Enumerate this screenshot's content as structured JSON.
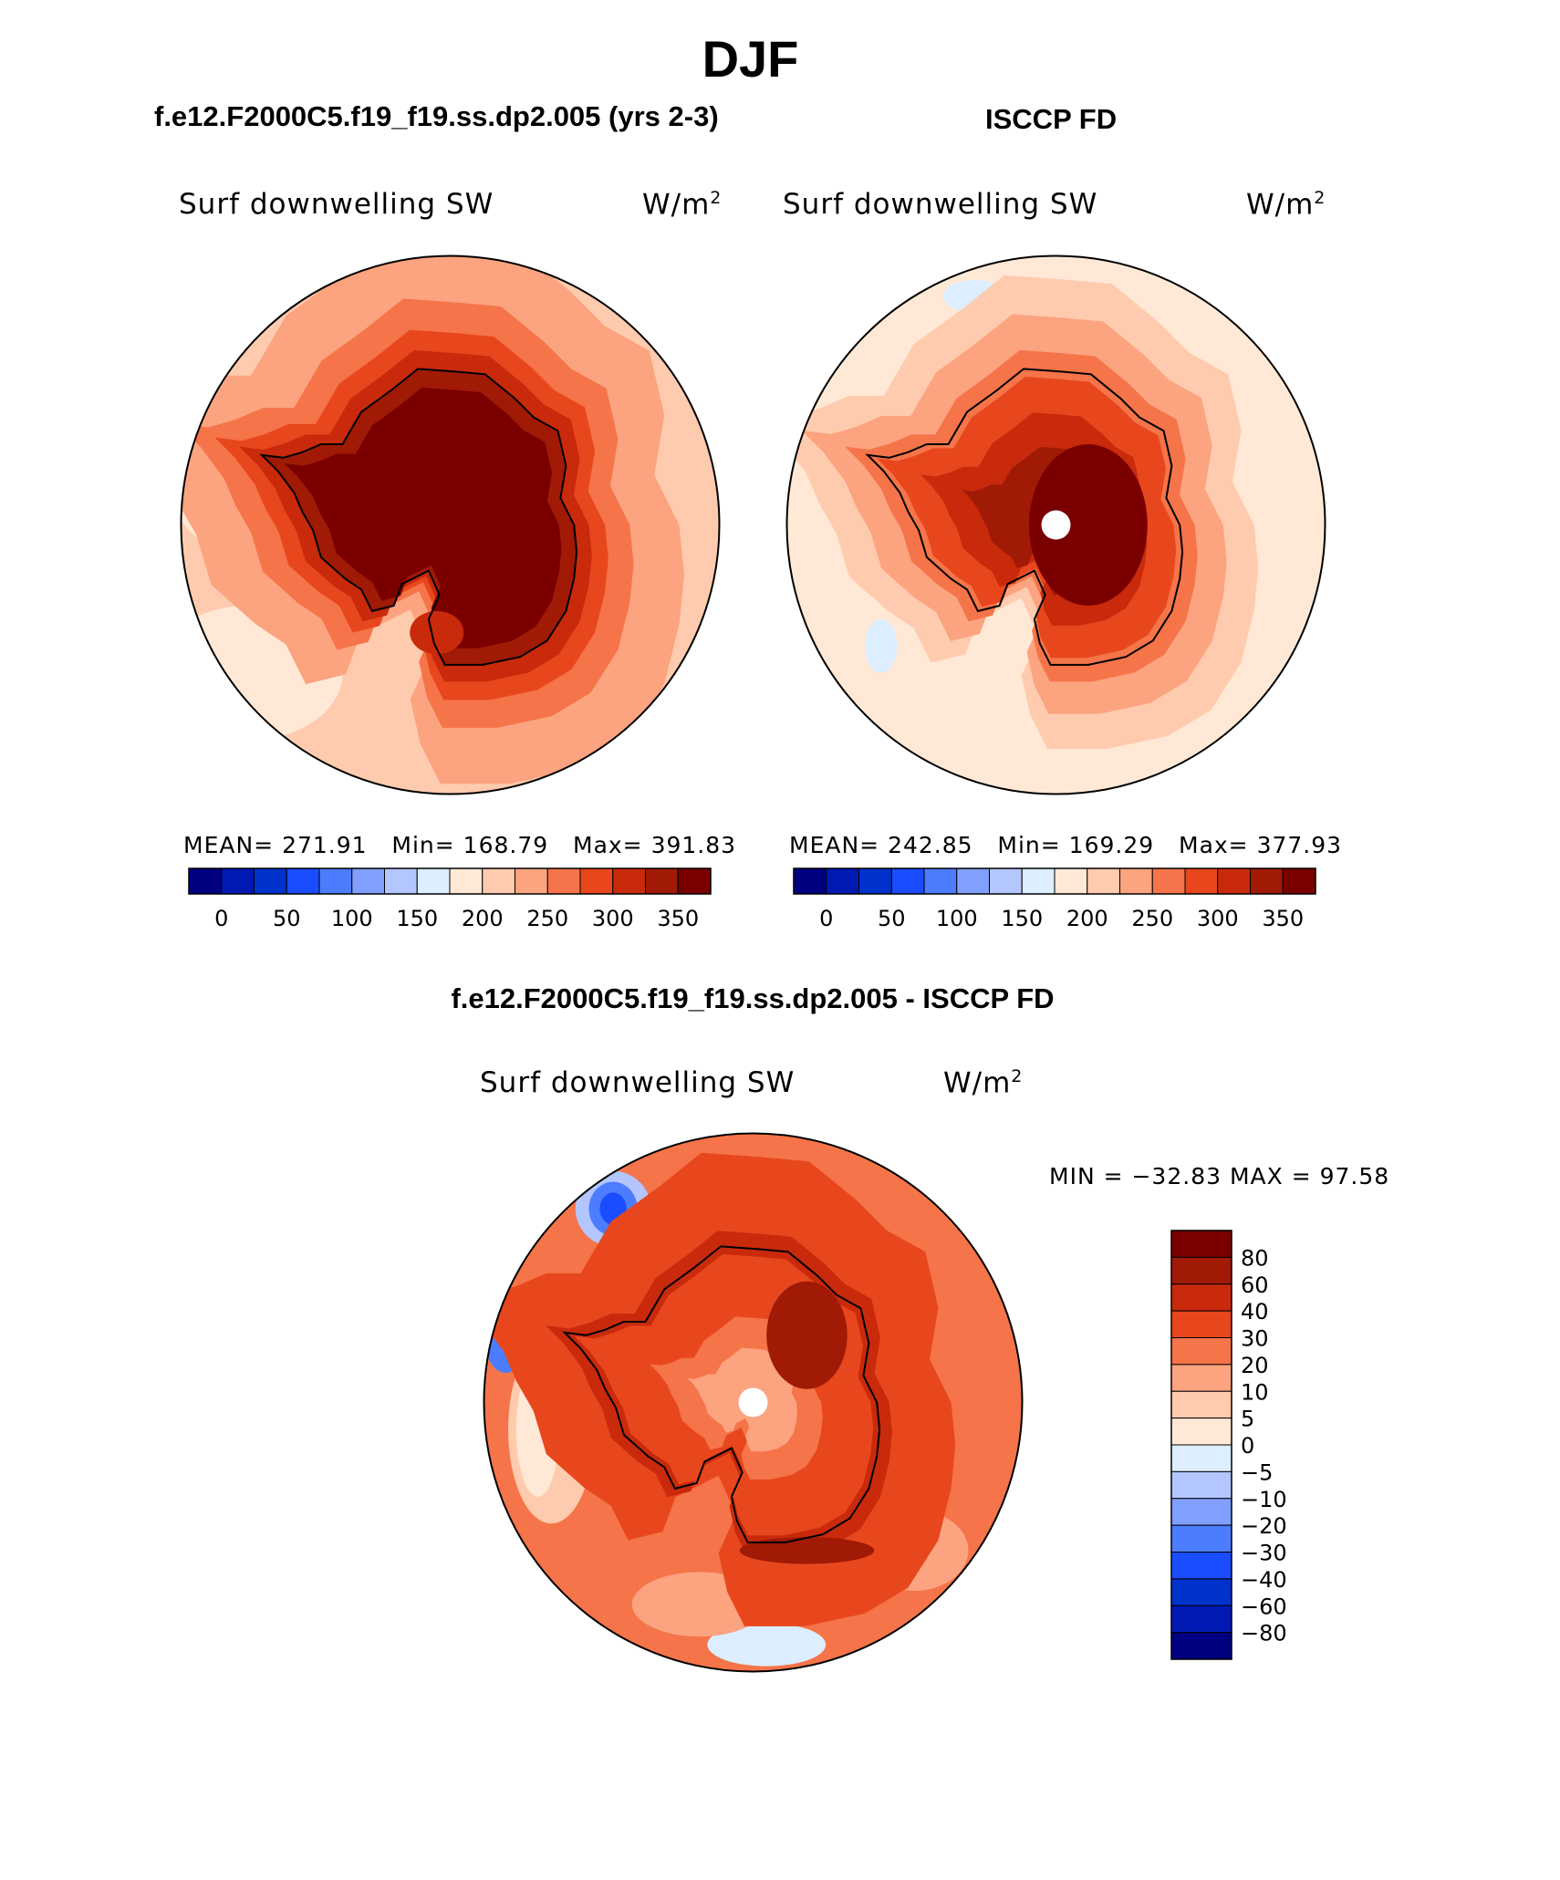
{
  "title": "DJF",
  "panels": {
    "model": {
      "title": "f.e12.F2000C5.f19_f19.ss.dp2.005 (yrs 2-3)"
    },
    "obs": {
      "title": "ISCCP FD"
    },
    "diff": {
      "title": "f.e12.F2000C5.f19_f19.ss.dp2.005 - ISCCP FD"
    }
  },
  "chart_data": [
    {
      "type": "heatmap",
      "title": "f.e12.F2000C5.f19_f19.ss.dp2.005 (yrs 2-3)",
      "variable": "Surf downwelling SW",
      "units": "W/m",
      "units_sup": "2",
      "projection": "south polar stereographic",
      "stats": {
        "mean_label": "MEAN=",
        "mean": "271.91",
        "min_label": "Min=",
        "min": "168.79",
        "max_label": "Max=",
        "max": "391.83"
      },
      "colorbar": {
        "orientation": "horizontal",
        "levels": [
          0,
          25,
          50,
          75,
          100,
          125,
          150,
          175,
          200,
          225,
          250,
          275,
          300,
          325,
          350
        ],
        "tick_labels": [
          "0",
          "50",
          "100",
          "150",
          "200",
          "250",
          "300",
          "350"
        ],
        "colors": [
          "#000080",
          "#001ab3",
          "#0033cc",
          "#1a4dff",
          "#4d7dff",
          "#809fff",
          "#b3c6ff",
          "#dceeff",
          "#ffe9d6",
          "#ffcbae",
          "#fca37f",
          "#f57449",
          "#e8471d",
          "#c92a0c",
          "#a01a06",
          "#7a0000"
        ]
      }
    },
    {
      "type": "heatmap",
      "title": "ISCCP FD",
      "variable": "Surf downwelling SW",
      "units": "W/m",
      "units_sup": "2",
      "projection": "south polar stereographic",
      "stats": {
        "mean_label": "MEAN=",
        "mean": "242.85",
        "min_label": "Min=",
        "min": "169.29",
        "max_label": "Max=",
        "max": "377.93"
      },
      "colorbar": {
        "orientation": "horizontal",
        "levels": [
          0,
          25,
          50,
          75,
          100,
          125,
          150,
          175,
          200,
          225,
          250,
          275,
          300,
          325,
          350
        ],
        "tick_labels": [
          "0",
          "50",
          "100",
          "150",
          "200",
          "250",
          "300",
          "350"
        ],
        "colors": [
          "#000080",
          "#001ab3",
          "#0033cc",
          "#1a4dff",
          "#4d7dff",
          "#809fff",
          "#b3c6ff",
          "#dceeff",
          "#ffe9d6",
          "#ffcbae",
          "#fca37f",
          "#f57449",
          "#e8471d",
          "#c92a0c",
          "#a01a06",
          "#7a0000"
        ]
      }
    },
    {
      "type": "heatmap",
      "title": "f.e12.F2000C5.f19_f19.ss.dp2.005 - ISCCP FD",
      "variable": "Surf downwelling SW",
      "units": "W/m",
      "units_sup": "2",
      "projection": "south polar stereographic",
      "stats_text": "MIN = −32.83 MAX =  97.58",
      "colorbar": {
        "orientation": "vertical",
        "levels": [
          80,
          60,
          40,
          30,
          20,
          10,
          5,
          0,
          -5,
          -10,
          -20,
          -30,
          -40,
          -60,
          -80
        ],
        "tick_labels": [
          "80",
          "60",
          "40",
          "30",
          "20",
          "10",
          "5",
          "0",
          "−5",
          "−10",
          "−20",
          "−30",
          "−40",
          "−60",
          "−80"
        ],
        "colors": [
          "#7a0000",
          "#a01a06",
          "#c92a0c",
          "#e8471d",
          "#f57449",
          "#fca37f",
          "#ffcbae",
          "#ffe9d6",
          "#dceeff",
          "#b3c6ff",
          "#809fff",
          "#4d7dff",
          "#1a4dff",
          "#0033cc",
          "#001ab3",
          "#000080"
        ]
      }
    }
  ]
}
